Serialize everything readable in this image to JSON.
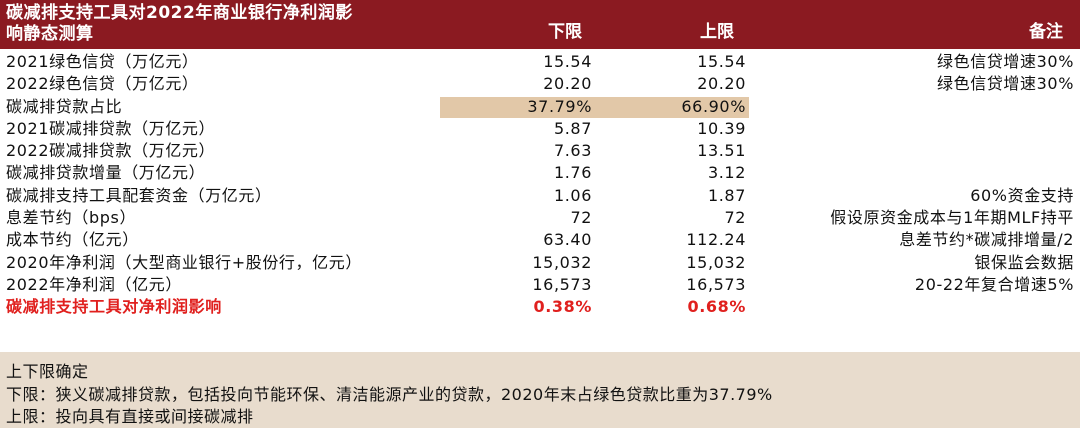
{
  "header": {
    "title_line1": "碳减排支持工具对2022年商业银行净利润影",
    "title_line2": "响静态测算",
    "col_low": "下限",
    "col_high": "上限",
    "col_note": "备注"
  },
  "rows": [
    {
      "label": "2021绿色信贷（万亿元）",
      "low": "15.54",
      "high": "15.54",
      "note": "绿色信贷增速30%"
    },
    {
      "label": "2022绿色信贷（万亿元）",
      "low": "20.20",
      "high": "20.20",
      "note": "绿色信贷增速30%"
    },
    {
      "label": "碳减排贷款占比",
      "low": "37.79%",
      "high": "66.90%",
      "note": ""
    },
    {
      "label": "2021碳减排贷款（万亿元）",
      "low": "5.87",
      "high": "10.39",
      "note": ""
    },
    {
      "label": "2022碳减排贷款（万亿元）",
      "low": "7.63",
      "high": "13.51",
      "note": ""
    },
    {
      "label": "碳减排贷款增量（万亿元）",
      "low": "1.76",
      "high": "3.12",
      "note": ""
    },
    {
      "label": "碳减排支持工具配套资金（万亿元）",
      "low": "1.06",
      "high": "1.87",
      "note": "60%资金支持"
    },
    {
      "label": "息差节约（bps）",
      "low": "72",
      "high": "72",
      "note": "假设原资金成本与1年期MLF持平"
    },
    {
      "label": "成本节约（亿元）",
      "low": "63.40",
      "high": "112.24",
      "note": "息差节约*碳减排增量/2"
    },
    {
      "label": "2020年净利润（大型商业银行+股份行，亿元）",
      "low": "15,032",
      "high": "15,032",
      "note": "银保监会数据"
    },
    {
      "label": "2022年净利润（亿元）",
      "low": "16,573",
      "high": "16,573",
      "note": "20-22年复合增速5%"
    },
    {
      "label": "碳减排支持工具对净利润影响",
      "low": "0.38%",
      "high": "0.68%",
      "note": ""
    }
  ],
  "footer": {
    "line1": "上下限确定",
    "line2": "下限：狭义碳减排贷款，包括投向节能环保、清洁能源产业的贷款，2020年末占绿色贷款比重为37.79%",
    "line3": "上限：投向具有直接或间接碳减排"
  },
  "colors": {
    "header_bg": "#8b1a21",
    "highlight_bg": "#e2c8a8",
    "result_red": "#e0201e",
    "footer_bg": "#e8dccd"
  }
}
